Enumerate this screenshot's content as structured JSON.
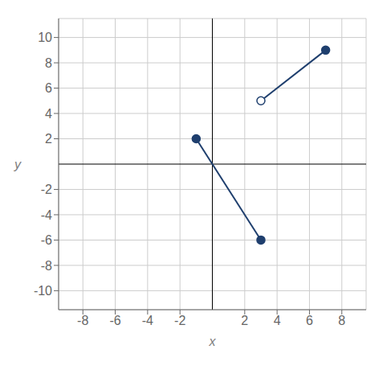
{
  "chart_data": {
    "type": "line",
    "xlabel": "x",
    "ylabel": "y",
    "xlim": [
      -9.5,
      9.5
    ],
    "ylim": [
      -11.5,
      11.5
    ],
    "xticks": [
      -8,
      -6,
      -4,
      -2,
      2,
      4,
      6,
      8
    ],
    "yticks": [
      -10,
      -8,
      -6,
      -4,
      -2,
      2,
      4,
      6,
      8,
      10
    ],
    "grid": true,
    "series": [
      {
        "type": "line",
        "color": "#1f3f6e",
        "x": [
          -1,
          3
        ],
        "values": [
          2,
          -6
        ]
      },
      {
        "type": "line",
        "color": "#1f3f6e",
        "x": [
          3,
          7
        ],
        "values": [
          5,
          9
        ]
      },
      {
        "type": "scatter",
        "marker": "filled",
        "color": "#1f3f6e",
        "x": [
          -1,
          3,
          7
        ],
        "values": [
          2,
          -6,
          9
        ]
      },
      {
        "type": "scatter",
        "marker": "open",
        "color": "#1f3f6e",
        "x": [
          3
        ],
        "values": [
          5
        ]
      }
    ]
  }
}
